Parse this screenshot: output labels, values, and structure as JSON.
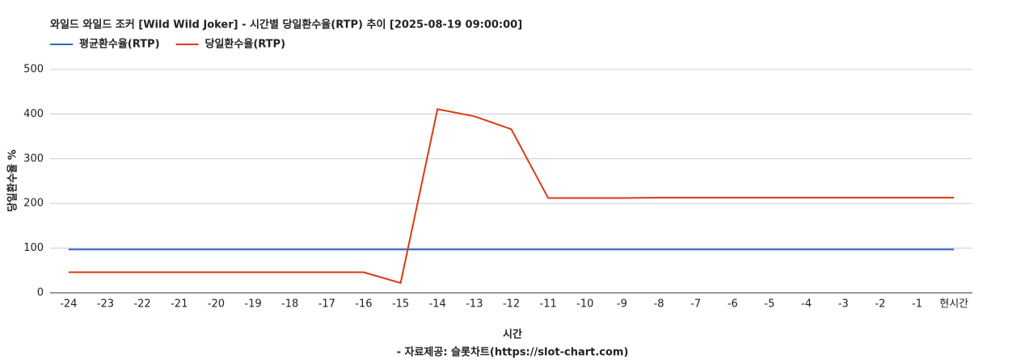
{
  "chart_data": {
    "type": "line",
    "title": "와일드 와일드 조커 [Wild Wild Joker] - 시간별 당일환수율(RTP) 추이 [2025-08-19 09:00:00]",
    "x_label": "시간",
    "x_sublabel": "- 자료제공: 슬롯차트(https://slot-chart.com)",
    "y_label": "당일환수율 %",
    "categories": [
      "-24",
      "-23",
      "-22",
      "-21",
      "-20",
      "-19",
      "-18",
      "-17",
      "-16",
      "-15",
      "-14",
      "-13",
      "-12",
      "-11",
      "-10",
      "-9",
      "-8",
      "-7",
      "-6",
      "-5",
      "-4",
      "-3",
      "-2",
      "-1",
      "현시간"
    ],
    "series": [
      {
        "name": "평균환수율(RTP)",
        "color": "#3366cc",
        "values": [
          97,
          97,
          97,
          97,
          97,
          97,
          97,
          97,
          97,
          97,
          97,
          97,
          97,
          97,
          97,
          97,
          97,
          97,
          97,
          97,
          97,
          97,
          97,
          97,
          97
        ]
      },
      {
        "name": "당일환수율(RTP)",
        "color": "#dc3912",
        "values": [
          46,
          46,
          46,
          46,
          46,
          46,
          46,
          46,
          46,
          22,
          411,
          395,
          366,
          212,
          212,
          212,
          213,
          213,
          213,
          213,
          213,
          213,
          213,
          213,
          213
        ]
      }
    ],
    "ylim": [
      0,
      500
    ],
    "yticks": [
      0,
      100,
      200,
      300,
      400,
      500
    ],
    "grid": true,
    "legend": "top-left"
  }
}
